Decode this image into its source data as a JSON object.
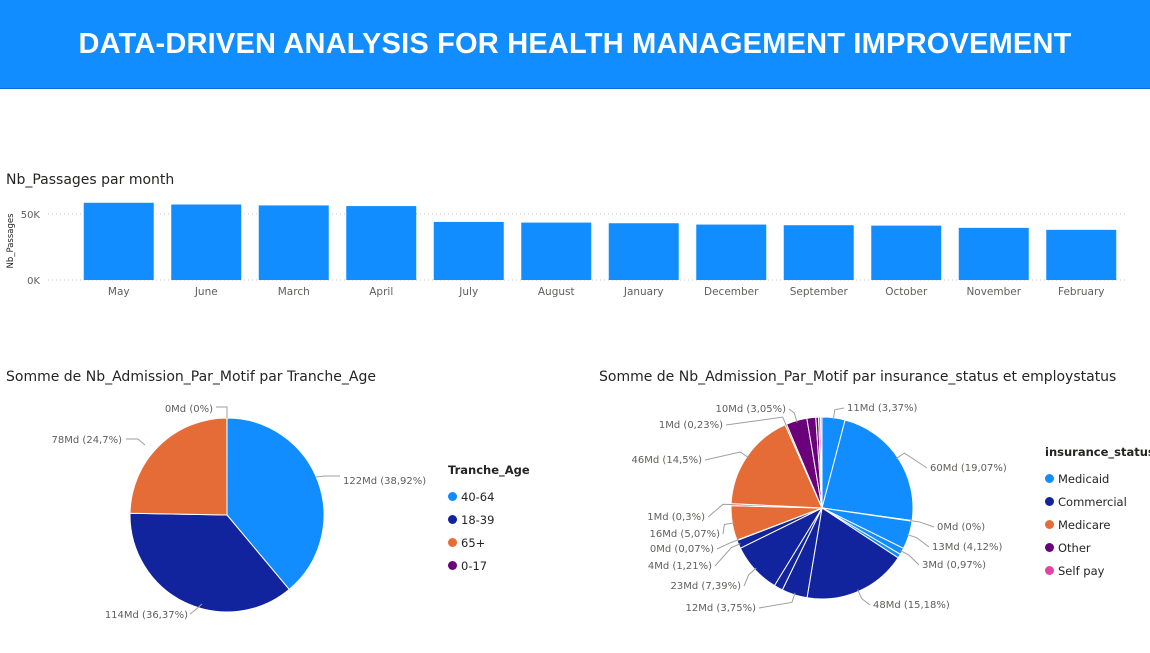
{
  "header": {
    "title": "DATA-DRIVEN ANALYSIS FOR HEALTH MANAGEMENT IMPROVEMENT"
  },
  "colors": {
    "banner": "#118dff",
    "bar": "#118dff",
    "c40_64": "#118dff",
    "c18_39": "#12239e",
    "c65": "#e66c37",
    "c0_17": "#6b007b",
    "medicaid": "#118dff",
    "commercial": "#12239e",
    "medicare": "#e66c37",
    "other": "#6b007b",
    "selfpay": "#e044a7"
  },
  "chart_data": [
    {
      "type": "bar",
      "title": "Nb_Passages par month",
      "ylabel": "Nb_Passages",
      "xlabel": "",
      "categories": [
        "May",
        "June",
        "March",
        "April",
        "July",
        "August",
        "January",
        "December",
        "September",
        "October",
        "November",
        "February"
      ],
      "values": [
        58500,
        57200,
        56500,
        56000,
        44000,
        43500,
        43000,
        42000,
        41500,
        41200,
        39500,
        38000
      ],
      "yticks": [
        "0K",
        "50K"
      ],
      "ylim": [
        0,
        60000
      ],
      "grid": true
    },
    {
      "type": "pie",
      "title": "Somme de Nb_Admission_Par_Motif par Tranche_Age",
      "legend_title": "Tranche_Age",
      "legend_placement": "right",
      "slices": [
        {
          "name": "40-64",
          "value": 38.92,
          "label": "122Md (38,92%)",
          "color": "#118dff"
        },
        {
          "name": "18-39",
          "value": 36.37,
          "label": "114Md (36,37%)",
          "color": "#12239e"
        },
        {
          "name": "65+",
          "value": 24.7,
          "label": "78Md (24,7%)",
          "color": "#e66c37"
        },
        {
          "name": "0-17",
          "value": 0.01,
          "label": "0Md (0%)",
          "color": "#6b007b"
        }
      ]
    },
    {
      "type": "pie",
      "title": "Somme de Nb_Admission_Par_Motif par insurance_status et employstatus",
      "legend_title": "insurance_status",
      "legend_placement": "right",
      "legend": [
        {
          "name": "Medicaid",
          "color": "#118dff"
        },
        {
          "name": "Commercial",
          "color": "#12239e"
        },
        {
          "name": "Medicare",
          "color": "#e66c37"
        },
        {
          "name": "Other",
          "color": "#6b007b"
        },
        {
          "name": "Self pay",
          "color": "#e044a7"
        }
      ],
      "slices": [
        {
          "group": "Medicaid",
          "value": 3.37,
          "label": "11Md (3,37%)"
        },
        {
          "group": "Medicaid",
          "value": 19.07,
          "label": "60Md (19,07%)"
        },
        {
          "group": "Medicaid",
          "value": 0.1,
          "label": "0Md (0%)"
        },
        {
          "group": "Medicaid",
          "value": 4.12,
          "label": "13Md (4,12%)"
        },
        {
          "group": "Medicaid",
          "value": 0.97,
          "label": "3Md (0,97%)"
        },
        {
          "group": "Medicaid",
          "value": 0.6,
          "label": ""
        },
        {
          "group": "Commercial",
          "value": 15.18,
          "label": "48Md (15,18%)"
        },
        {
          "group": "Commercial",
          "value": 3.75,
          "label": "12Md (3,75%)"
        },
        {
          "group": "Commercial",
          "value": 1.3,
          "label": ""
        },
        {
          "group": "Commercial",
          "value": 7.39,
          "label": "23Md (7,39%)"
        },
        {
          "group": "Commercial",
          "value": 1.21,
          "label": "4Md (1,21%)"
        },
        {
          "group": "Commercial",
          "value": 0.07,
          "label": "0Md (0,07%)"
        },
        {
          "group": "Medicare",
          "value": 5.07,
          "label": "16Md (5,07%)"
        },
        {
          "group": "Medicare",
          "value": 0.3,
          "label": "1Md (0,3%)"
        },
        {
          "group": "Medicare",
          "value": 14.5,
          "label": "46Md (14,5%)"
        },
        {
          "group": "Medicare",
          "value": 0.23,
          "label": "1Md (0,23%)"
        },
        {
          "group": "Other",
          "value": 3.05,
          "label": "10Md (3,05%)"
        },
        {
          "group": "Other",
          "value": 1.3,
          "label": ""
        },
        {
          "group": "Other",
          "value": 0.4,
          "label": ""
        },
        {
          "group": "Self pay",
          "value": 0.3,
          "label": ""
        },
        {
          "group": "Self pay",
          "value": 0.2,
          "label": ""
        }
      ]
    }
  ]
}
